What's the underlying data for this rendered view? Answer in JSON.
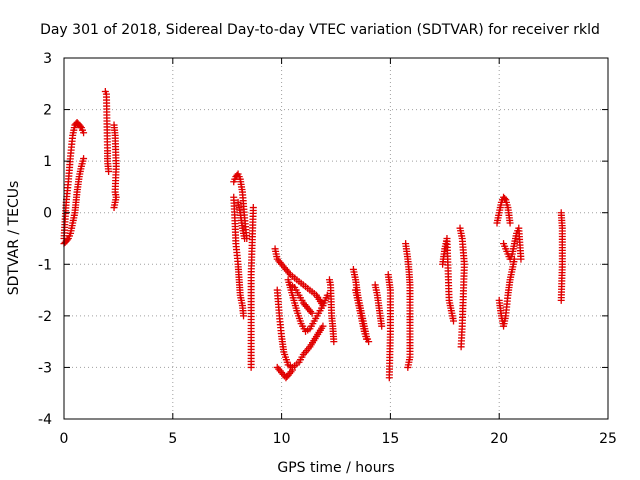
{
  "chart_data": {
    "type": "scatter",
    "title": "Day 301 of 2018, Sidereal Day-to-day VTEC variation (SDTVAR) for receiver rkld",
    "xlabel": "GPS time / hours",
    "ylabel": "SDTVAR / TECUs",
    "xlim": [
      0,
      25
    ],
    "ylim": [
      -4,
      3
    ],
    "xticks": [
      0,
      5,
      10,
      15,
      20,
      25
    ],
    "yticks": [
      -4,
      -3,
      -2,
      -1,
      0,
      1,
      2,
      3
    ],
    "grid": true,
    "marker": "+",
    "color": "#e00000",
    "segments": [
      {
        "x": [
          0.0,
          0.1,
          0.2,
          0.3,
          0.4,
          0.5,
          0.6,
          0.7,
          0.8,
          0.9
        ],
        "y": [
          -0.5,
          0.2,
          0.6,
          1.1,
          1.5,
          1.7,
          1.75,
          1.7,
          1.65,
          1.55
        ]
      },
      {
        "x": [
          0.0,
          0.1,
          0.2,
          0.3,
          0.4,
          0.5,
          0.55,
          0.6,
          0.7,
          0.8,
          0.9
        ],
        "y": [
          -0.6,
          -0.55,
          -0.5,
          -0.4,
          -0.2,
          0.0,
          0.2,
          0.4,
          0.7,
          0.9,
          1.05
        ]
      },
      {
        "x": [
          1.9,
          1.95,
          2.0,
          2.0,
          2.05
        ],
        "y": [
          2.35,
          2.3,
          1.2,
          1.0,
          0.8
        ]
      },
      {
        "x": [
          2.3,
          2.35,
          2.4,
          2.35,
          2.4,
          2.3
        ],
        "y": [
          1.7,
          1.5,
          0.9,
          0.4,
          0.3,
          0.1
        ]
      },
      {
        "x": [
          7.8,
          7.9,
          8.0,
          8.1,
          8.2,
          8.3,
          8.4
        ],
        "y": [
          0.6,
          0.7,
          0.75,
          0.65,
          0.4,
          -0.1,
          -0.5
        ]
      },
      {
        "x": [
          7.8,
          7.85,
          7.9,
          8.0,
          8.05,
          8.1,
          8.2,
          8.25
        ],
        "y": [
          0.3,
          -0.1,
          -0.6,
          -1.0,
          -1.3,
          -1.6,
          -1.8,
          -2.0
        ]
      },
      {
        "x": [
          8.0,
          8.1,
          8.2,
          8.3
        ],
        "y": [
          0.2,
          0.0,
          -0.3,
          -0.5
        ]
      },
      {
        "x": [
          8.7,
          8.6,
          8.6
        ],
        "y": [
          0.1,
          -1.2,
          -3.0
        ]
      },
      {
        "x": [
          9.7,
          9.8,
          10.0,
          10.2,
          10.4,
          10.7,
          11.0,
          11.3,
          11.6,
          11.9
        ],
        "y": [
          -0.7,
          -0.9,
          -1.0,
          -1.1,
          -1.2,
          -1.3,
          -1.4,
          -1.5,
          -1.6,
          -1.8
        ]
      },
      {
        "x": [
          9.8,
          9.9,
          10.0,
          10.1,
          10.3,
          10.5,
          10.8,
          11.0,
          11.3,
          11.6,
          11.9
        ],
        "y": [
          -1.5,
          -2.0,
          -2.4,
          -2.7,
          -2.95,
          -3.0,
          -2.9,
          -2.75,
          -2.6,
          -2.4,
          -2.2
        ]
      },
      {
        "x": [
          9.8,
          10.0,
          10.2,
          10.3,
          10.5
        ],
        "y": [
          -3.0,
          -3.1,
          -3.2,
          -3.15,
          -3.05
        ]
      },
      {
        "x": [
          10.3,
          10.5,
          10.7,
          10.9,
          11.1,
          11.3,
          11.5,
          11.7,
          11.9,
          12.1
        ],
        "y": [
          -1.3,
          -1.6,
          -1.9,
          -2.15,
          -2.3,
          -2.25,
          -2.1,
          -1.95,
          -1.8,
          -1.6
        ]
      },
      {
        "x": [
          10.4,
          10.6,
          10.8,
          11.0,
          11.2,
          11.4
        ],
        "y": [
          -1.4,
          -1.45,
          -1.6,
          -1.75,
          -1.85,
          -1.95
        ]
      },
      {
        "x": [
          12.2,
          12.25,
          12.3,
          12.35,
          12.4
        ],
        "y": [
          -1.3,
          -1.4,
          -2.0,
          -2.2,
          -2.5
        ]
      },
      {
        "x": [
          13.3,
          13.4,
          13.5,
          13.6,
          13.7,
          13.8,
          13.9,
          14.0
        ],
        "y": [
          -1.1,
          -1.3,
          -1.6,
          -1.8,
          -2.0,
          -2.2,
          -2.4,
          -2.5
        ]
      },
      {
        "x": [
          13.4,
          13.5,
          13.6,
          13.7,
          13.8,
          13.9
        ],
        "y": [
          -1.5,
          -1.7,
          -1.9,
          -2.1,
          -2.3,
          -2.45
        ]
      },
      {
        "x": [
          14.3,
          14.4,
          14.5,
          14.6
        ],
        "y": [
          -1.4,
          -1.6,
          -1.9,
          -2.2
        ]
      },
      {
        "x": [
          14.9,
          15.0,
          15.0,
          15.0,
          14.95
        ],
        "y": [
          -1.2,
          -1.5,
          -1.9,
          -2.3,
          -3.2
        ]
      },
      {
        "x": [
          15.7,
          15.8,
          15.85,
          15.9,
          15.9,
          15.85,
          15.8
        ],
        "y": [
          -0.6,
          -0.9,
          -1.1,
          -1.4,
          -2.8,
          -2.9,
          -3.0
        ]
      },
      {
        "x": [
          17.4,
          17.5,
          17.6,
          17.7,
          17.8,
          17.9
        ],
        "y": [
          -1.0,
          -0.7,
          -0.5,
          -1.7,
          -1.9,
          -2.1
        ]
      },
      {
        "x": [
          18.2,
          18.3,
          18.4,
          18.3,
          18.25
        ],
        "y": [
          -0.3,
          -0.5,
          -1.0,
          -2.2,
          -2.6
        ]
      },
      {
        "x": [
          19.9,
          20.0,
          20.1,
          20.2,
          20.3,
          20.4,
          20.5
        ],
        "y": [
          -0.2,
          0.0,
          0.2,
          0.3,
          0.25,
          0.1,
          -0.2
        ]
      },
      {
        "x": [
          20.0,
          20.1,
          20.2,
          20.3,
          20.4,
          20.5,
          20.6,
          20.7
        ],
        "y": [
          -1.7,
          -2.0,
          -2.2,
          -2.0,
          -1.6,
          -1.3,
          -1.1,
          -0.9
        ]
      },
      {
        "x": [
          20.2,
          20.3,
          20.4,
          20.5,
          20.6,
          20.7,
          20.8,
          20.9,
          21.0
        ],
        "y": [
          -0.6,
          -0.7,
          -0.8,
          -0.9,
          -0.8,
          -0.6,
          -0.4,
          -0.3,
          -0.9
        ]
      },
      {
        "x": [
          22.85,
          22.9,
          22.9,
          22.85
        ],
        "y": [
          0.0,
          -0.3,
          -1.0,
          -1.7
        ]
      }
    ]
  }
}
